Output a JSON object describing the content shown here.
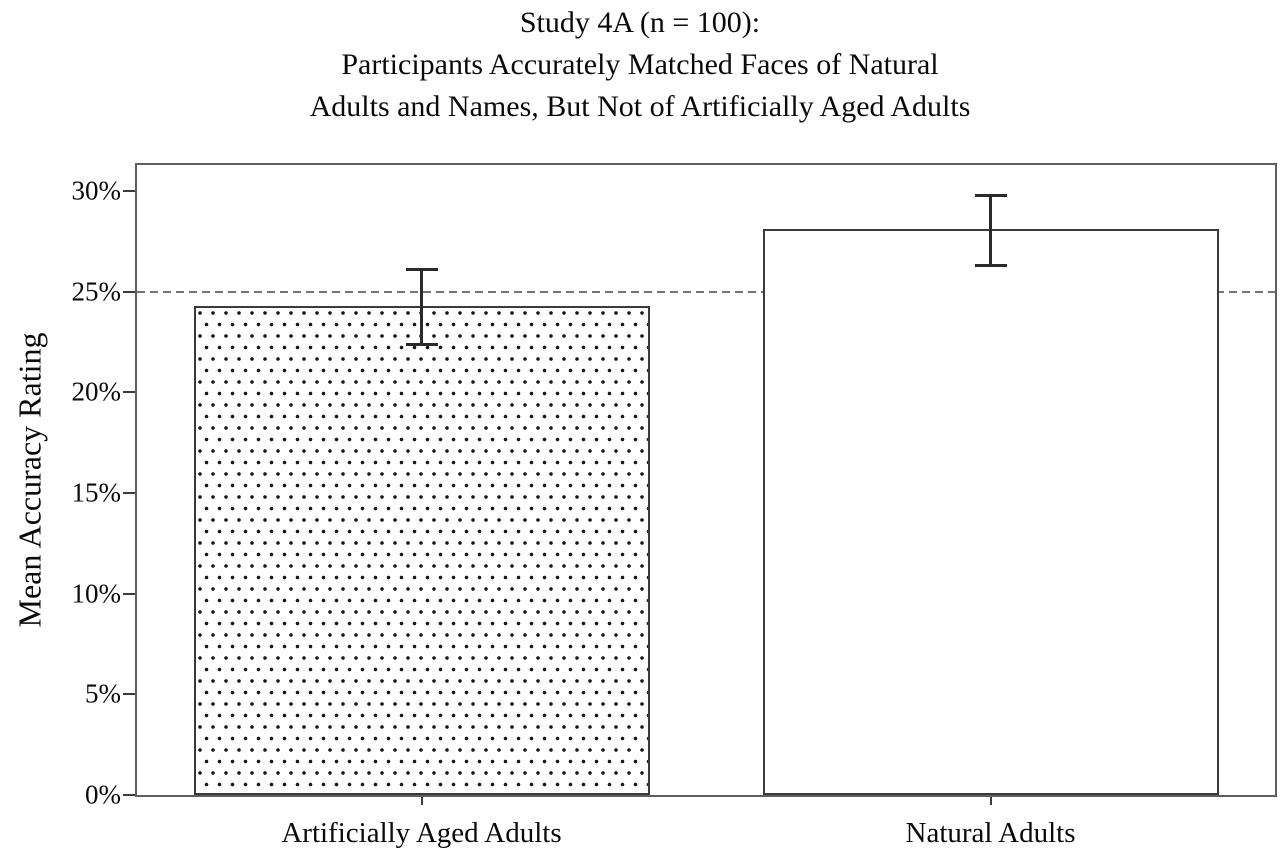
{
  "chart_data": {
    "type": "bar",
    "title": "Study 4A (n = 100): Participants Accurately Matched Faces of Natural Adults and Names, But Not of Artificially Aged Adults",
    "title_lines": [
      "Study 4A (n = 100):",
      "Participants Accurately Matched Faces of Natural",
      "Adults and Names, But Not of Artificially Aged Adults"
    ],
    "xlabel": "",
    "ylabel": "Mean Accuracy Rating",
    "categories": [
      "Artificially Aged Adults",
      "Natural Adults"
    ],
    "values": [
      24.3,
      28.1
    ],
    "value_unit": "%",
    "error_bars": [
      {
        "low": 22.4,
        "high": 26.1
      },
      {
        "low": 26.3,
        "high": 29.8
      }
    ],
    "yticks": [
      {
        "value": 0,
        "label": "0%"
      },
      {
        "value": 5,
        "label": "5%"
      },
      {
        "value": 10,
        "label": "10%"
      },
      {
        "value": 15,
        "label": "15%"
      },
      {
        "value": 20,
        "label": "20%"
      },
      {
        "value": 25,
        "label": "25%"
      },
      {
        "value": 30,
        "label": "30%"
      }
    ],
    "ylim": [
      0,
      31.3
    ],
    "reference_line": {
      "value": 25,
      "style": "dashed",
      "color": "#757575"
    },
    "bar_fills": [
      "dot-pattern",
      "white"
    ],
    "bar_border_color": "#3a3a3a",
    "grid": false,
    "legend": "none"
  }
}
